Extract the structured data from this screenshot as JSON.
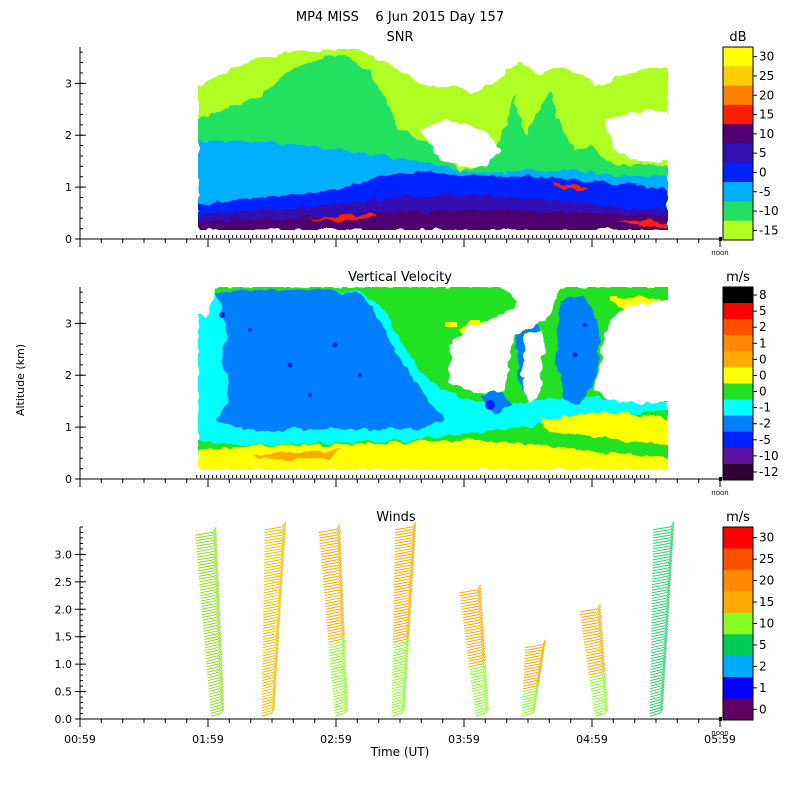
{
  "figure": {
    "title": "MP4 MISS    6 Jun 2015 Day 157",
    "ylabel": "Altitude (km)",
    "xlabel": "Time (UT)",
    "noon_label": "noon"
  },
  "chart_data": [
    {
      "type": "heatmap",
      "title": "SNR",
      "colorbar_unit": "dB",
      "colorbar_labels": [
        "30",
        "25",
        "20",
        "15",
        "10",
        "5",
        "0",
        "-5",
        "-10",
        "-15"
      ],
      "colors": [
        "#ffff00",
        "#ffcc00",
        "#ff8000",
        "#ff2000",
        "#500070",
        "#3010b0",
        "#0020ff",
        "#00b0ff",
        "#20e060",
        "#b0ff20"
      ],
      "yticks": [
        "0",
        "1",
        "2",
        "3"
      ],
      "ylim": [
        0,
        3.7
      ],
      "xlim": [
        "00:59",
        "05:59"
      ],
      "data_xrange": [
        "01:49",
        "05:29"
      ]
    },
    {
      "type": "heatmap",
      "title": "Vertical Velocity",
      "colorbar_unit": "m/s",
      "colorbar_labels": [
        "8",
        "5",
        "2",
        "1",
        "0",
        "0",
        "0",
        "-1",
        "-2",
        "-5",
        "-10",
        "-12"
      ],
      "colors": [
        "#000000",
        "#ff0000",
        "#ff5000",
        "#ff8800",
        "#ffaa00",
        "#ffff00",
        "#20e020",
        "#00ffff",
        "#0080ff",
        "#0020ff",
        "#6010a0",
        "#300030"
      ],
      "yticks": [
        "0",
        "1",
        "2",
        "3"
      ],
      "ylim": [
        0,
        3.7
      ],
      "xlim": [
        "00:59",
        "05:59"
      ],
      "data_xrange": [
        "01:49",
        "05:29"
      ]
    },
    {
      "type": "scatter",
      "title": "Winds",
      "colorbar_unit": "m/s",
      "colorbar_labels": [
        "30",
        "25",
        "20",
        "15",
        "10",
        "5",
        "2",
        "1",
        "0"
      ],
      "colors": [
        "#ff0000",
        "#ff5000",
        "#ff8800",
        "#ffaa00",
        "#88ff22",
        "#00cc55",
        "#00aaff",
        "#0000ff",
        "#600060"
      ],
      "yticks": [
        "0.0",
        "0.5",
        "1.0",
        "1.5",
        "2.0",
        "2.5",
        "3.0"
      ],
      "ylim": [
        0,
        3.5
      ],
      "xlim": [
        "00:59",
        "05:59"
      ],
      "xticks": [
        "00:59",
        "01:59",
        "02:59",
        "03:59",
        "04:59",
        "05:59"
      ],
      "profiles": [
        {
          "time": "01:53",
          "top": 3.35,
          "color": "#8adf20",
          "lean": 1
        },
        {
          "time": "02:21",
          "top": 3.45,
          "color": "#f0c000",
          "lean": -1
        },
        {
          "time": "02:51",
          "top": 3.4,
          "color": "#ffaa00",
          "lean": 1
        },
        {
          "time": "03:22",
          "top": 3.45,
          "color": "#ffaa00",
          "lean": -1
        },
        {
          "time": "03:57",
          "top": 2.3,
          "color": "#ffaa00",
          "lean": 1
        },
        {
          "time": "04:23",
          "top": 1.35,
          "color": "#ffaa00",
          "lean": -1
        },
        {
          "time": "04:53",
          "top": 2.0,
          "color": "#ffaa00",
          "lean": 1
        },
        {
          "time": "05:23",
          "top": 3.45,
          "color": "#30d070",
          "lean": -1
        }
      ]
    }
  ]
}
